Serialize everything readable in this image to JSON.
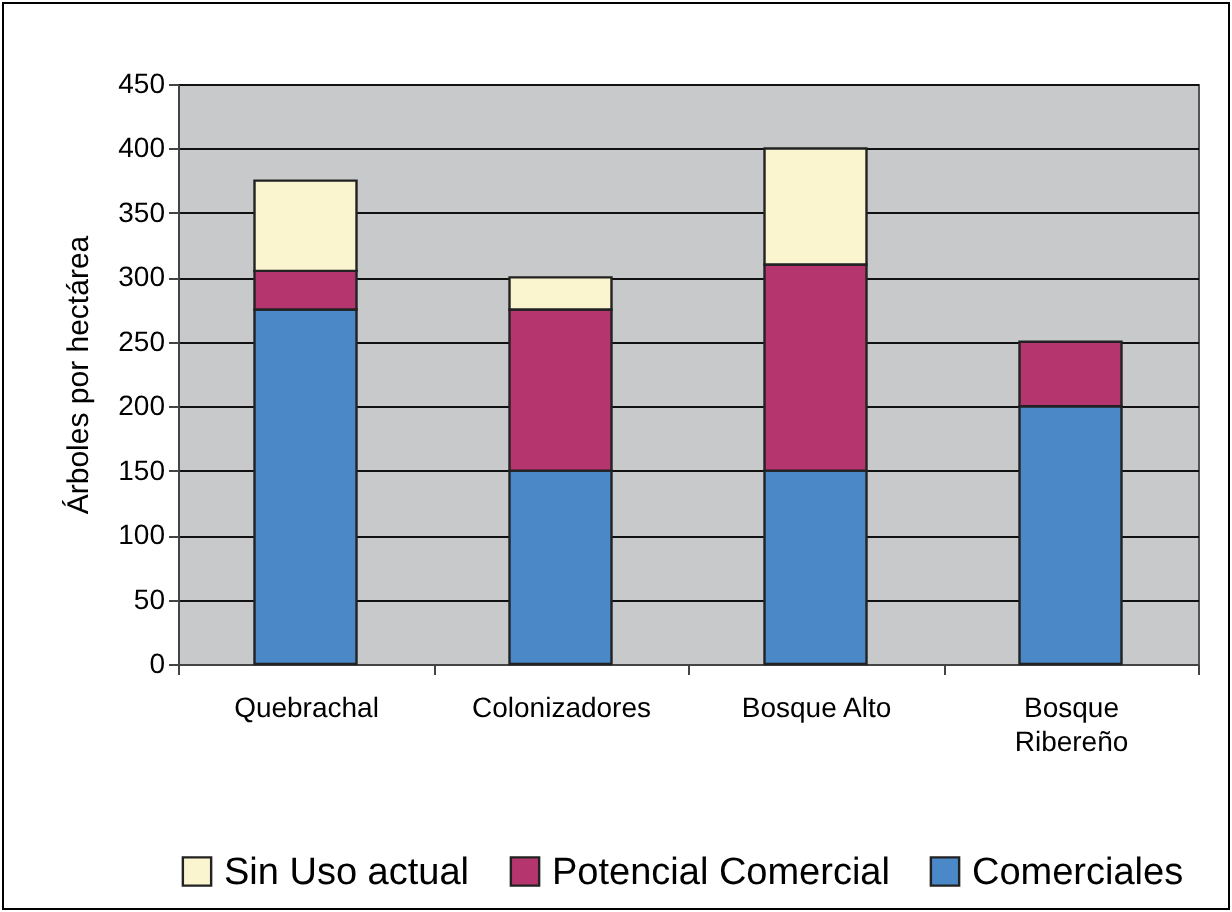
{
  "chart_data": {
    "type": "bar",
    "stacked": true,
    "ylabel": "Árboles por hectárea",
    "categories": [
      "Quebrachal",
      "Colonizadores",
      "Bosque Alto",
      "Bosque Ribereño"
    ],
    "series": [
      {
        "name": "Comerciales",
        "color": "#4a88c7",
        "values": [
          275,
          150,
          150,
          200
        ]
      },
      {
        "name": "Potencial Comercial",
        "color": "#b5366f",
        "values": [
          30,
          125,
          160,
          50
        ]
      },
      {
        "name": "Sin Uso actual",
        "color": "#faf5cf",
        "values": [
          70,
          25,
          90,
          null
        ]
      }
    ],
    "ylim": [
      0,
      450
    ],
    "yticks": [
      0,
      50,
      100,
      150,
      200,
      250,
      300,
      350,
      400,
      450
    ],
    "grid": "y",
    "legend": "bottom"
  }
}
